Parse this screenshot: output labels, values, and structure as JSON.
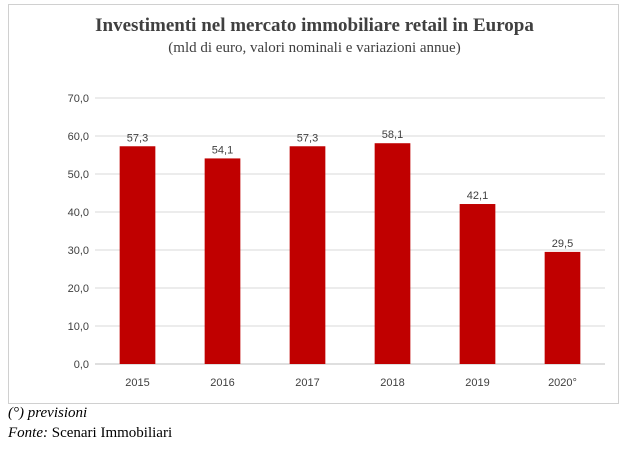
{
  "chart_data": {
    "type": "bar",
    "title": "Investimenti nel mercato immobiliare retail in Europa",
    "subtitle": "(mld di euro, valori nominali e variazioni annue)",
    "categories": [
      "2015",
      "2016",
      "2017",
      "2018",
      "2019",
      "2020°"
    ],
    "values": [
      57.3,
      54.1,
      57.3,
      58.1,
      42.1,
      29.5
    ],
    "value_labels": [
      "57,3",
      "54,1",
      "57,3",
      "58,1",
      "42,1",
      "29,5"
    ],
    "ylim": [
      0,
      70
    ],
    "yticks": [
      0,
      10,
      20,
      30,
      40,
      50,
      60,
      70
    ],
    "ytick_labels": [
      "0,0",
      "10,0",
      "20,0",
      "30,0",
      "40,0",
      "50,0",
      "60,0",
      "70,0"
    ],
    "xlabel": "",
    "ylabel": "",
    "grid": true,
    "bar_color": "#C00000"
  },
  "footnotes": {
    "forecast_note": "(°) previsioni",
    "source_label": "Fonte:",
    "source_value": "Scenari Immobiliari"
  }
}
